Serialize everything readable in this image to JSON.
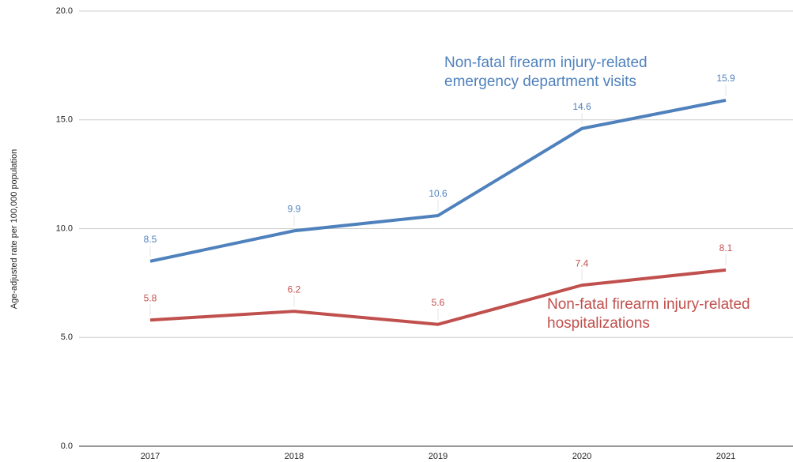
{
  "chart_data": {
    "type": "line",
    "ylabel": "Age-adjusted rate per 100,000 population",
    "categories": [
      "2017",
      "2018",
      "2019",
      "2020",
      "2021"
    ],
    "series": [
      {
        "name": "Non-fatal firearm injury-related emergency department visits",
        "color": "#4f81bd",
        "values": [
          8.5,
          9.9,
          10.6,
          14.6,
          15.9
        ]
      },
      {
        "name": "Non-fatal firearm injury-related hospitalizations",
        "color": "#c0504d",
        "values": [
          5.8,
          6.2,
          5.6,
          7.4,
          8.1
        ]
      }
    ],
    "ylim": [
      0,
      20
    ],
    "yticks": [
      {
        "value": 0,
        "label": "0.0"
      },
      {
        "value": 5,
        "label": "5.0"
      },
      {
        "value": 10,
        "label": "10.0"
      },
      {
        "value": 15,
        "label": "15.0"
      },
      {
        "value": 20,
        "label": "20.0"
      }
    ],
    "grid": true
  }
}
